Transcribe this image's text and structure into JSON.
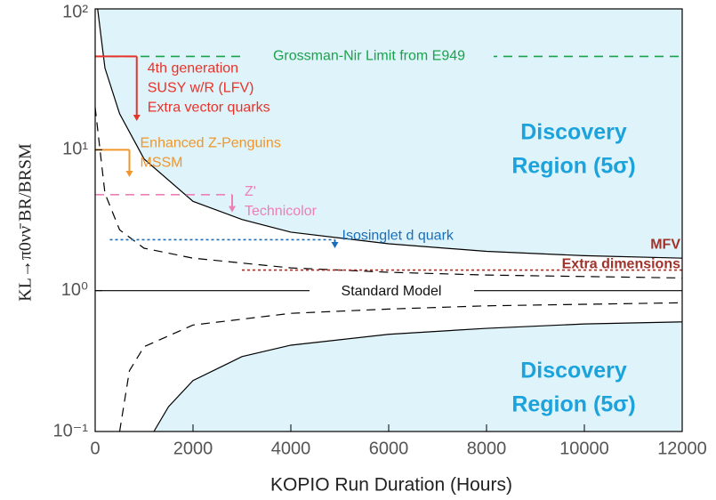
{
  "chart_data": {
    "type": "line",
    "xlabel": "KOPIO Run Duration (Hours)",
    "ylabel": "KL→π0νν̄   BR/BRSM",
    "xlim": [
      0,
      12000
    ],
    "xticks": [
      0,
      2000,
      4000,
      6000,
      8000,
      10000,
      12000
    ],
    "ylim": [
      0.1,
      100
    ],
    "yscale": "log",
    "yticks": [
      {
        "value": 0.1,
        "label": "10⁻¹"
      },
      {
        "value": 1,
        "label": "10⁰"
      },
      {
        "value": 10,
        "label": "10¹"
      },
      {
        "value": 100,
        "label": "10²"
      }
    ],
    "series": [
      {
        "style": "solid",
        "color": "#000000",
        "region": "above",
        "x": [
          50,
          200,
          500,
          1000,
          2000,
          3000,
          4000,
          6000,
          8000,
          10000,
          12000
        ],
        "values": [
          100,
          38,
          18,
          8.6,
          4.3,
          3.2,
          2.6,
          2.15,
          1.9,
          1.77,
          1.7
        ]
      },
      {
        "style": "dashed",
        "color": "#000000",
        "x": [
          0,
          200,
          500,
          1000,
          2000,
          4000,
          6000,
          8000,
          12000
        ],
        "values": [
          20,
          4.9,
          2.7,
          2.0,
          1.7,
          1.45,
          1.35,
          1.29,
          1.23
        ]
      },
      {
        "style": "solid",
        "color": "#000000",
        "region": "below",
        "x": [
          1200,
          1500,
          2000,
          3000,
          4000,
          6000,
          8000,
          10000,
          12000
        ],
        "values": [
          0.1,
          0.15,
          0.23,
          0.34,
          0.41,
          0.49,
          0.54,
          0.58,
          0.6
        ]
      },
      {
        "style": "dashed",
        "color": "#000000",
        "x": [
          500,
          700,
          1000,
          2000,
          4000,
          6000,
          8000,
          12000
        ],
        "values": [
          0.1,
          0.27,
          0.4,
          0.57,
          0.69,
          0.74,
          0.78,
          0.82
        ]
      }
    ],
    "region_color": "#dff3fa",
    "reference": {
      "value": 1,
      "label": "Standard Model"
    },
    "regions": [
      {
        "lines": [
          "Discovery",
          "Region (5σ)"
        ]
      },
      {
        "lines": [
          "Discovery",
          "Region (5σ)"
        ]
      }
    ],
    "annotations": [
      {
        "lines": [
          "Grossman-Nir Limit from E949"
        ],
        "color": "#1aa34a",
        "style": "dashed",
        "x": [
          0,
          12000
        ],
        "y": 46
      },
      {
        "lines": [
          "4th generation",
          "SUSY w/R (LFV)",
          "Extra vector quarks"
        ],
        "color": "#e8332a",
        "style": "solid",
        "x": [
          0,
          850
        ],
        "y": 46,
        "arrow_to": 16
      },
      {
        "lines": [
          "Enhanced Z-Penguins",
          "MSSM"
        ],
        "color": "#f0962a",
        "style": "solid",
        "x": [
          0,
          700
        ],
        "y": 10,
        "arrow_to": 6.4
      },
      {
        "lines": [
          "Z'",
          "Technicolor"
        ],
        "color": "#ec7fb4",
        "style": "dashed",
        "x": [
          0,
          2800
        ],
        "y": 4.8,
        "arrow_to": 3.6
      },
      {
        "lines": [
          "Isosinglet d quark"
        ],
        "color": "#1a6fb8",
        "style": "dotted",
        "x": [
          300,
          4900
        ],
        "y": 2.3,
        "arrow_to": 2.0
      },
      {
        "lines": [
          "MFV",
          "Extra dimensions"
        ],
        "color": "#a0322a",
        "style": "dotted",
        "x": [
          3000,
          12000
        ],
        "y": 1.4
      }
    ]
  }
}
